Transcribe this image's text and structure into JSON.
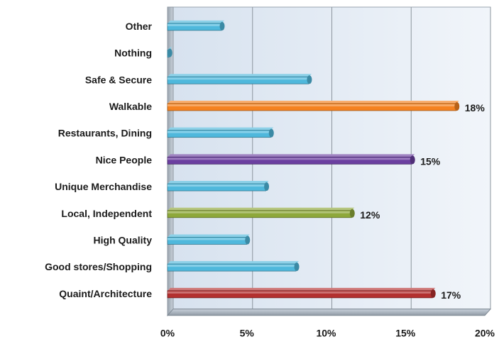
{
  "chart_data": {
    "type": "bar",
    "orientation": "horizontal",
    "title": "",
    "xlabel": "",
    "ylabel": "",
    "xlim": [
      0,
      20
    ],
    "x_ticks": [
      0,
      5,
      10,
      15,
      20
    ],
    "x_tick_labels": [
      "0%",
      "5%",
      "10%",
      "15%",
      "20%"
    ],
    "grid": "vertical",
    "legend": "none",
    "bars": [
      {
        "label": "Other",
        "value": 3.4,
        "color": "#4fb8dc",
        "data_label": ""
      },
      {
        "label": "Nothing",
        "value": 0.1,
        "color": "#4fb8dc",
        "data_label": ""
      },
      {
        "label": "Safe & Secure",
        "value": 8.9,
        "color": "#4fb8dc",
        "data_label": ""
      },
      {
        "label": "Walkable",
        "value": 18.2,
        "color": "#f58220",
        "data_label": "18%"
      },
      {
        "label": "Restaurants, Dining",
        "value": 6.5,
        "color": "#4fb8dc",
        "data_label": ""
      },
      {
        "label": "Nice People",
        "value": 15.4,
        "color": "#6b3fa0",
        "data_label": "15%"
      },
      {
        "label": "Unique Merchandise",
        "value": 6.2,
        "color": "#4fb8dc",
        "data_label": ""
      },
      {
        "label": "Local, Independent",
        "value": 11.6,
        "color": "#8ea83a",
        "data_label": "12%"
      },
      {
        "label": "High Quality",
        "value": 5.0,
        "color": "#4fb8dc",
        "data_label": ""
      },
      {
        "label": "Good stores/Shopping",
        "value": 8.1,
        "color": "#4fb8dc",
        "data_label": ""
      },
      {
        "label": "Quaint/Architecture",
        "value": 16.7,
        "color": "#b3302f",
        "data_label": "17%"
      }
    ]
  }
}
